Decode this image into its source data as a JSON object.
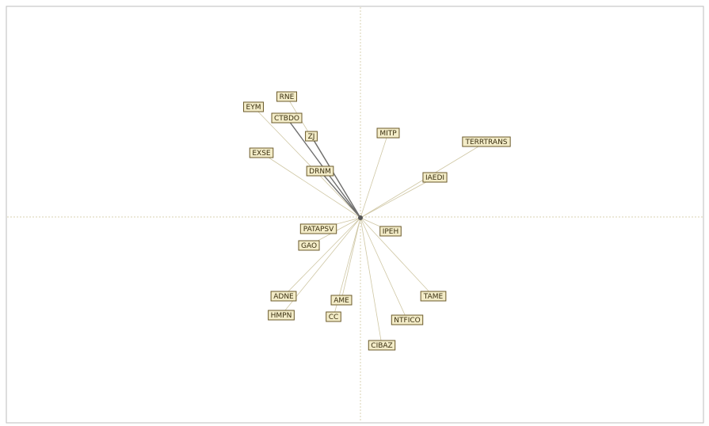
{
  "nodes": [
    {
      "label": "EYM"
    },
    {
      "label": "RNE"
    },
    {
      "label": "CTBDO"
    },
    {
      "label": "ZJ"
    },
    {
      "label": "MITP"
    },
    {
      "label": "TERRTRANS"
    },
    {
      "label": "EXSE"
    },
    {
      "label": "DRNM"
    },
    {
      "label": "IAEDI"
    },
    {
      "label": "PATAPSV"
    },
    {
      "label": "IPEH"
    },
    {
      "label": "GAO"
    },
    {
      "label": "ADNE"
    },
    {
      "label": "AME"
    },
    {
      "label": "TAME"
    },
    {
      "label": "HMPN"
    },
    {
      "label": "CC"
    },
    {
      "label": "NTFICO"
    },
    {
      "label": "CIBAZ"
    }
  ]
}
